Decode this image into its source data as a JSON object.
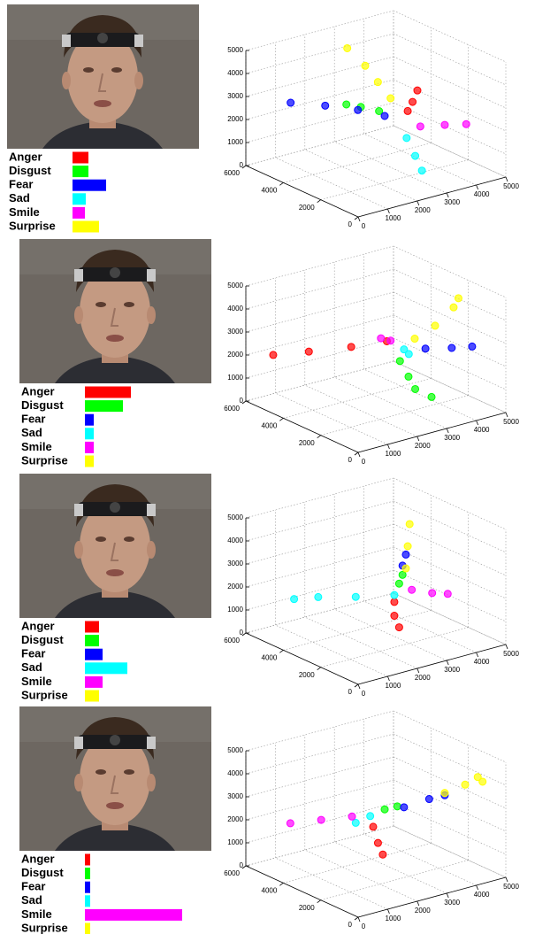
{
  "chart_data": [
    {
      "type": "bar",
      "orientation": "horizontal",
      "categories": [
        "Anger",
        "Disgust",
        "Fear",
        "Sad",
        "Smile",
        "Surprise"
      ],
      "values": [
        18,
        18,
        38,
        15,
        14,
        30
      ],
      "colors": [
        "#ff0000",
        "#00ff00",
        "#0000ff",
        "#00ffff",
        "#ff00ff",
        "#ffff00"
      ]
    },
    {
      "type": "scatter3d",
      "xlim": [
        0,
        5000
      ],
      "ylim": [
        0,
        6000
      ],
      "zlim": [
        0,
        5000
      ],
      "xticks": [
        0,
        1000,
        2000,
        3000,
        4000,
        5000
      ],
      "yticks": [
        0,
        2000,
        4000,
        6000
      ],
      "zticks": [
        0,
        1000,
        2000,
        3000,
        4000,
        5000
      ],
      "grid": true,
      "series": [
        {
          "color": "#ff0000",
          "x": [
            3200,
            3300,
            3400
          ],
          "y": [
            2400,
            2300,
            2200
          ],
          "z": [
            2600,
            3000,
            3500
          ]
        },
        {
          "color": "#00ff00",
          "x": [
            2800,
            2500,
            2200
          ],
          "y": [
            3300,
            3800,
            4100
          ],
          "z": [
            2400,
            2500,
            2600
          ]
        },
        {
          "color": "#0000ff",
          "x": [
            2800,
            2400,
            1800,
            1200
          ],
          "y": [
            3000,
            3800,
            4600,
            5500
          ],
          "z": [
            2300,
            2400,
            2500,
            2500
          ]
        },
        {
          "color": "#00ffff",
          "x": [
            3100,
            3200,
            3300
          ],
          "y": [
            2300,
            2000,
            1800
          ],
          "z": [
            1500,
            800,
            200
          ]
        },
        {
          "color": "#ff00ff",
          "x": [
            3500,
            4200,
            4800
          ],
          "y": [
            2200,
            2000,
            1800
          ],
          "z": [
            1900,
            1800,
            1700
          ]
        },
        {
          "color": "#ffff00",
          "x": [
            3000,
            2950,
            2900,
            2800
          ],
          "y": [
            3000,
            3600,
            4200,
            5000
          ],
          "z": [
            3000,
            3500,
            4000,
            4500
          ]
        }
      ]
    },
    {
      "type": "bar",
      "orientation": "horizontal",
      "categories": [
        "Anger",
        "Disgust",
        "Fear",
        "Sad",
        "Smile",
        "Surprise"
      ],
      "values": [
        52,
        43,
        10,
        10,
        10,
        10
      ],
      "colors": [
        "#ff0000",
        "#00ff00",
        "#0000ff",
        "#00ffff",
        "#ff00ff",
        "#ffff00"
      ]
    },
    {
      "type": "scatter3d",
      "xlim": [
        0,
        5000
      ],
      "ylim": [
        0,
        6000
      ],
      "zlim": [
        0,
        5000
      ],
      "xticks": [
        0,
        1000,
        2000,
        3000,
        4000,
        5000
      ],
      "yticks": [
        0,
        2000,
        4000,
        6000
      ],
      "zticks": [
        0,
        1000,
        2000,
        3000,
        4000,
        5000
      ],
      "grid": true,
      "series": [
        {
          "color": "#ff0000",
          "x": [
            3000,
            2300,
            1500,
            800
          ],
          "y": [
            3200,
            4000,
            5000,
            5800
          ],
          "z": [
            2600,
            2300,
            2000,
            1800
          ]
        },
        {
          "color": "#00ff00",
          "x": [
            3000,
            3100,
            3200,
            3500
          ],
          "y": [
            2500,
            2200,
            2000,
            1600
          ],
          "z": [
            2000,
            1400,
            900,
            600
          ]
        },
        {
          "color": "#0000ff",
          "x": [
            3800,
            4500,
            5000
          ],
          "y": [
            2400,
            2100,
            1800
          ],
          "z": [
            2300,
            2200,
            2200
          ]
        },
        {
          "color": "#00ffff",
          "x": [
            3200,
            3300
          ],
          "y": [
            2600,
            2500
          ],
          "z": [
            2400,
            2200
          ]
        },
        {
          "color": "#ff00ff",
          "x": [
            3000,
            2800
          ],
          "y": [
            3000,
            3200
          ],
          "z": [
            2700,
            2800
          ]
        },
        {
          "color": "#ffff00",
          "x": [
            3500,
            4000,
            4500,
            4600
          ],
          "y": [
            2500,
            2200,
            2000,
            1900
          ],
          "z": [
            2800,
            3300,
            4000,
            4400
          ]
        }
      ]
    },
    {
      "type": "bar",
      "orientation": "horizontal",
      "categories": [
        "Anger",
        "Disgust",
        "Fear",
        "Sad",
        "Smile",
        "Surprise"
      ],
      "values": [
        16,
        16,
        20,
        48,
        20,
        16
      ],
      "colors": [
        "#ff0000",
        "#00ff00",
        "#0000ff",
        "#00ffff",
        "#ff00ff",
        "#ffff00"
      ]
    },
    {
      "type": "scatter3d",
      "xlim": [
        0,
        5000
      ],
      "ylim": [
        0,
        6000
      ],
      "zlim": [
        0,
        5000
      ],
      "xticks": [
        0,
        1000,
        2000,
        3000,
        4000,
        5000
      ],
      "yticks": [
        0,
        2000,
        4000,
        6000
      ],
      "zticks": [
        0,
        1000,
        2000,
        3000,
        4000,
        5000
      ],
      "grid": true,
      "series": [
        {
          "color": "#ff0000",
          "x": [
            3000,
            3000,
            3100
          ],
          "y": [
            2800,
            2800,
            2700
          ],
          "z": [
            1500,
            900,
            400
          ]
        },
        {
          "color": "#00ff00",
          "x": [
            3100,
            3150
          ],
          "y": [
            2700,
            2600
          ],
          "z": [
            2300,
            2700
          ]
        },
        {
          "color": "#0000ff",
          "x": [
            3150,
            3200
          ],
          "y": [
            2600,
            2500
          ],
          "z": [
            3100,
            3600
          ]
        },
        {
          "color": "#00ffff",
          "x": [
            3000,
            2200,
            1500,
            1000
          ],
          "y": [
            2800,
            3600,
            4500,
            5000
          ],
          "z": [
            1800,
            1700,
            1600,
            1500
          ]
        },
        {
          "color": "#ff00ff",
          "x": [
            3400,
            3900,
            4300
          ],
          "y": [
            2500,
            2200,
            2000
          ],
          "z": [
            2000,
            1800,
            1700
          ]
        },
        {
          "color": "#ffff00",
          "x": [
            3200,
            3200,
            3200
          ],
          "y": [
            2500,
            2400,
            2300
          ],
          "z": [
            3000,
            4000,
            5000
          ]
        }
      ]
    },
    {
      "type": "bar",
      "orientation": "horizontal",
      "categories": [
        "Anger",
        "Disgust",
        "Fear",
        "Sad",
        "Smile",
        "Surprise"
      ],
      "values": [
        6,
        6,
        6,
        6,
        110,
        6
      ],
      "colors": [
        "#ff0000",
        "#00ff00",
        "#0000ff",
        "#00ffff",
        "#ff00ff",
        "#ffff00"
      ]
    },
    {
      "type": "scatter3d",
      "xlim": [
        0,
        5000
      ],
      "ylim": [
        0,
        6000
      ],
      "zlim": [
        0,
        5000
      ],
      "xticks": [
        0,
        1000,
        2000,
        3000,
        4000,
        5000
      ],
      "yticks": [
        0,
        2000,
        4000,
        6000
      ],
      "zticks": [
        0,
        1000,
        2000,
        3000,
        4000,
        5000
      ],
      "grid": true,
      "series": [
        {
          "color": "#ff0000",
          "x": [
            2600,
            2700,
            2800
          ],
          "y": [
            3300,
            3200,
            3100
          ],
          "z": [
            1800,
            1100,
            600
          ]
        },
        {
          "color": "#00ff00",
          "x": [
            2800,
            3100
          ],
          "y": [
            3000,
            2800
          ],
          "z": [
            2600,
            2700
          ]
        },
        {
          "color": "#0000ff",
          "x": [
            3200,
            3800,
            4200
          ],
          "y": [
            2600,
            2200,
            2000
          ],
          "z": [
            2700,
            3000,
            3100
          ]
        },
        {
          "color": "#00ffff",
          "x": [
            2500,
            2200
          ],
          "y": [
            3300,
            3600
          ],
          "z": [
            2300,
            2000
          ]
        },
        {
          "color": "#ff00ff",
          "x": [
            2200,
            1600,
            1000
          ],
          "y": [
            3800,
            4500,
            5200
          ],
          "z": [
            2200,
            2000,
            1800
          ]
        },
        {
          "color": "#ffff00",
          "x": [
            4200,
            4700,
            5000,
            5100
          ],
          "y": [
            2000,
            1700,
            1500,
            1400
          ],
          "z": [
            3200,
            3500,
            3800,
            3600
          ]
        }
      ]
    }
  ]
}
